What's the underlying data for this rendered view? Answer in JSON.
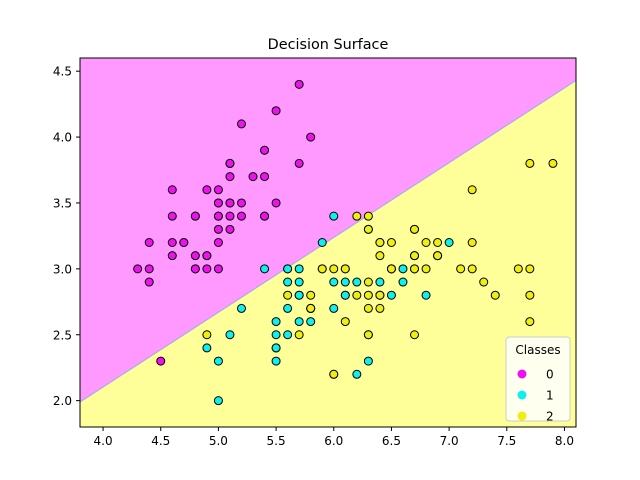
{
  "chart_data": {
    "type": "scatter",
    "title": "Decision Surface",
    "xlabel": "",
    "ylabel": "",
    "xlim": [
      3.8,
      8.1
    ],
    "ylim": [
      1.8,
      4.6
    ],
    "xticks": [
      4.0,
      4.5,
      5.0,
      5.5,
      6.0,
      6.5,
      7.0,
      7.5,
      8.0
    ],
    "xtick_labels": [
      "4.0",
      "4.5",
      "5.0",
      "5.5",
      "6.0",
      "6.5",
      "7.0",
      "7.5",
      "8.0"
    ],
    "yticks": [
      2.0,
      2.5,
      3.0,
      3.5,
      4.0,
      4.5
    ],
    "ytick_labels": [
      "2.0",
      "2.5",
      "3.0",
      "3.5",
      "4.0",
      "4.5"
    ],
    "grid": false,
    "decision_boundary": {
      "points": [
        [
          3.8,
          1.99
        ],
        [
          8.1,
          4.43
        ]
      ],
      "region_above_color": "#ff99ff",
      "region_below_color": "#ffff99",
      "line_color": "#aaaaee"
    },
    "legend": {
      "title": "Classes",
      "placement": "lower-right",
      "entries": [
        "0",
        "1",
        "2"
      ]
    },
    "series": [
      {
        "name": "0",
        "color": "#ee11ee",
        "points": [
          [
            5.1,
            3.5
          ],
          [
            4.9,
            3.0
          ],
          [
            4.7,
            3.2
          ],
          [
            4.6,
            3.1
          ],
          [
            5.0,
            3.6
          ],
          [
            5.4,
            3.9
          ],
          [
            4.6,
            3.4
          ],
          [
            5.0,
            3.4
          ],
          [
            4.4,
            2.9
          ],
          [
            4.9,
            3.1
          ],
          [
            5.4,
            3.7
          ],
          [
            4.8,
            3.4
          ],
          [
            4.8,
            3.0
          ],
          [
            4.3,
            3.0
          ],
          [
            5.8,
            4.0
          ],
          [
            5.7,
            4.4
          ],
          [
            5.4,
            3.9
          ],
          [
            5.1,
            3.5
          ],
          [
            5.7,
            3.8
          ],
          [
            5.1,
            3.8
          ],
          [
            5.4,
            3.4
          ],
          [
            5.1,
            3.7
          ],
          [
            4.6,
            3.6
          ],
          [
            5.1,
            3.3
          ],
          [
            4.8,
            3.4
          ],
          [
            5.0,
            3.0
          ],
          [
            5.0,
            3.4
          ],
          [
            5.2,
            3.5
          ],
          [
            5.2,
            3.4
          ],
          [
            4.7,
            3.2
          ],
          [
            4.8,
            3.1
          ],
          [
            5.4,
            3.4
          ],
          [
            5.2,
            4.1
          ],
          [
            5.5,
            4.2
          ],
          [
            4.9,
            3.1
          ],
          [
            5.0,
            3.2
          ],
          [
            5.5,
            3.5
          ],
          [
            4.9,
            3.6
          ],
          [
            4.4,
            3.0
          ],
          [
            5.1,
            3.4
          ],
          [
            5.0,
            3.5
          ],
          [
            4.5,
            2.3
          ],
          [
            4.4,
            3.2
          ],
          [
            5.0,
            3.5
          ],
          [
            5.1,
            3.8
          ],
          [
            4.8,
            3.0
          ],
          [
            5.1,
            3.8
          ],
          [
            4.6,
            3.2
          ],
          [
            5.3,
            3.7
          ],
          [
            5.0,
            3.3
          ]
        ]
      },
      {
        "name": "1",
        "color": "#11eeee",
        "points": [
          [
            7.0,
            3.2
          ],
          [
            6.4,
            3.2
          ],
          [
            6.9,
            3.1
          ],
          [
            5.5,
            2.3
          ],
          [
            6.5,
            2.8
          ],
          [
            5.7,
            2.8
          ],
          [
            6.3,
            3.3
          ],
          [
            4.9,
            2.4
          ],
          [
            6.6,
            2.9
          ],
          [
            5.2,
            2.7
          ],
          [
            5.0,
            2.0
          ],
          [
            5.9,
            3.0
          ],
          [
            6.0,
            2.2
          ],
          [
            6.1,
            2.9
          ],
          [
            5.6,
            2.9
          ],
          [
            6.7,
            3.1
          ],
          [
            5.6,
            3.0
          ],
          [
            5.8,
            2.7
          ],
          [
            6.2,
            2.2
          ],
          [
            5.6,
            2.5
          ],
          [
            5.9,
            3.2
          ],
          [
            6.1,
            2.8
          ],
          [
            6.3,
            2.5
          ],
          [
            6.1,
            2.8
          ],
          [
            6.4,
            2.9
          ],
          [
            6.6,
            3.0
          ],
          [
            6.8,
            2.8
          ],
          [
            6.7,
            3.0
          ],
          [
            6.0,
            2.9
          ],
          [
            5.7,
            2.6
          ],
          [
            5.5,
            2.4
          ],
          [
            5.5,
            2.4
          ],
          [
            5.8,
            2.7
          ],
          [
            6.0,
            2.7
          ],
          [
            5.4,
            3.0
          ],
          [
            6.0,
            3.4
          ],
          [
            6.7,
            3.1
          ],
          [
            6.3,
            2.3
          ],
          [
            5.6,
            3.0
          ],
          [
            5.5,
            2.5
          ],
          [
            5.5,
            2.6
          ],
          [
            6.1,
            3.0
          ],
          [
            5.8,
            2.6
          ],
          [
            5.0,
            2.3
          ],
          [
            5.6,
            2.7
          ],
          [
            5.7,
            3.0
          ],
          [
            5.7,
            2.9
          ],
          [
            6.2,
            2.9
          ],
          [
            5.1,
            2.5
          ],
          [
            5.7,
            2.8
          ]
        ]
      },
      {
        "name": "2",
        "color": "#eeee11",
        "points": [
          [
            6.3,
            3.3
          ],
          [
            5.8,
            2.7
          ],
          [
            7.1,
            3.0
          ],
          [
            6.3,
            2.9
          ],
          [
            6.5,
            3.0
          ],
          [
            7.6,
            3.0
          ],
          [
            4.9,
            2.5
          ],
          [
            7.3,
            2.9
          ],
          [
            6.7,
            2.5
          ],
          [
            7.2,
            3.6
          ],
          [
            6.5,
            3.2
          ],
          [
            6.4,
            2.7
          ],
          [
            6.8,
            3.0
          ],
          [
            5.7,
            2.5
          ],
          [
            5.8,
            2.8
          ],
          [
            6.4,
            3.2
          ],
          [
            6.5,
            3.0
          ],
          [
            7.7,
            3.8
          ],
          [
            7.7,
            2.6
          ],
          [
            6.0,
            2.2
          ],
          [
            6.9,
            3.2
          ],
          [
            5.6,
            2.8
          ],
          [
            7.7,
            2.8
          ],
          [
            6.3,
            2.7
          ],
          [
            6.7,
            3.3
          ],
          [
            7.2,
            3.2
          ],
          [
            6.2,
            2.8
          ],
          [
            6.1,
            3.0
          ],
          [
            6.4,
            2.8
          ],
          [
            7.2,
            3.0
          ],
          [
            7.4,
            2.8
          ],
          [
            7.9,
            3.8
          ],
          [
            6.4,
            2.8
          ],
          [
            6.3,
            2.8
          ],
          [
            6.1,
            2.6
          ],
          [
            7.7,
            3.0
          ],
          [
            6.3,
            3.4
          ],
          [
            6.4,
            3.1
          ],
          [
            6.0,
            3.0
          ],
          [
            6.9,
            3.1
          ],
          [
            6.7,
            3.1
          ],
          [
            6.9,
            3.1
          ],
          [
            5.8,
            2.7
          ],
          [
            6.8,
            3.2
          ],
          [
            6.7,
            3.3
          ],
          [
            6.7,
            3.0
          ],
          [
            6.3,
            2.5
          ],
          [
            6.5,
            3.0
          ],
          [
            6.2,
            3.4
          ],
          [
            5.9,
            3.0
          ]
        ]
      }
    ]
  }
}
